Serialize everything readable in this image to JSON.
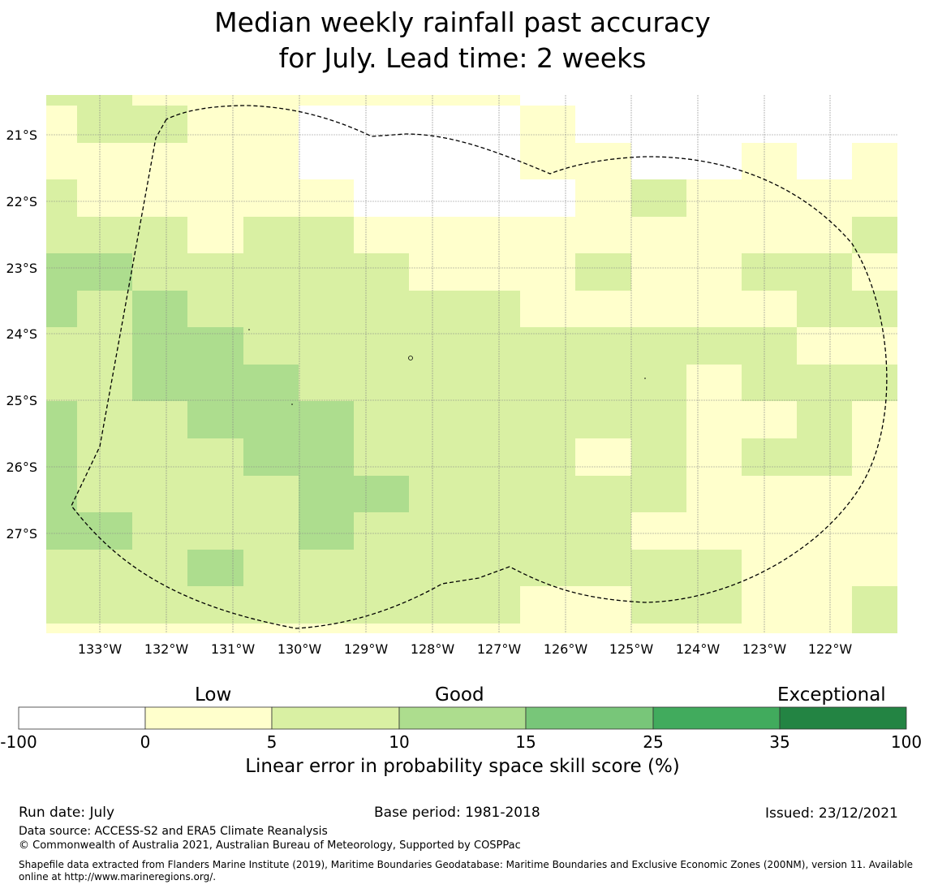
{
  "title": {
    "line1": "Median weekly rainfall past accuracy",
    "line2": "for July. Lead time: 2 weeks"
  },
  "map": {
    "lat_labels": [
      "21°S",
      "22°S",
      "23°S",
      "24°S",
      "25°S",
      "26°S",
      "27°S"
    ],
    "lon_labels": [
      "133°W",
      "132°W",
      "131°W",
      "130°W",
      "129°W",
      "128°W",
      "127°W",
      "126°W",
      "125°W",
      "124°W",
      "123°W",
      "122°W"
    ],
    "cell_colors": {
      "0": "#ffffff",
      "1": "#ffffcc",
      "2": "#d9f0a3",
      "3": "#addd8e",
      "4": "#78c679",
      "5": "#41ab5d",
      "6": "#238443"
    },
    "grid": [
      "222111111111111111111110000000000000000000000000",
      "2222222211111111111111000000000000000000000000000",
      "1112222221111111111111111000000000000000000000000",
      "111111111111111111111111111111111111100000000000",
      "111111111111111110000000000000000001111111111111",
      "111111111111111000000000000000000000000000000000"
    ],
    "rows": [
      "1 2 2 1 1 0 0 0 0 1 0 0 0 0 0 0",
      "1 1 1 1 1 0 0 0 0 1 1 0 0 1 0 1",
      "2 1 1 1 1 1 0 0 0 0 1 2 1 1 1 1",
      "2 2 2 1 2 2 1 1 1 1 1 1 1 1 1 2",
      "3 3 2 2 2 2 2 1 1 1 2 1 1 2 2 1",
      "3 2 3 2 2 2 2 2 2 1 1 1 1 1 2 2",
      "2 2 3 3 2 2 2 2 2 2 2 2 2 2 1 1",
      "2 2 3 3 3 2 2 2 2 2 2 2 1 2 2 2",
      "3 2 2 3 3 3 2 2 2 2 2 2 1 1 2 1",
      "3 2 2 2 3 3 2 2 2 2 1 2 1 2 2 1",
      "3 2 2 2 2 3 3 2 2 2 2 2 1 1 1 1",
      "3 3 2 2 2 3 2 2 2 2 2 1 1 1 1 1",
      "2 2 2 3 2 2 2 2 2 2 2 2 2 1 1 1",
      "2 2 2 2 2 2 2 2 2 1 1 2 2 1 1 2"
    ]
  },
  "colorbar": {
    "category_labels": [
      "Low",
      "Good",
      "Exceptional"
    ],
    "ticks": [
      "-100",
      "0",
      "5",
      "10",
      "15",
      "25",
      "35",
      "100"
    ],
    "colors": [
      "#ffffff",
      "#ffffcc",
      "#d9f0a3",
      "#addd8e",
      "#78c679",
      "#41ab5d",
      "#238443"
    ],
    "label": "Linear error in probability space skill score (%)"
  },
  "footer": {
    "run_date": "Run date: July",
    "base_period": "Base period: 1981-2018",
    "issued": "Issued: 23/12/2021",
    "data_source": "Data source: ACCESS-S2 and ERA5 Climate Reanalysis",
    "copyright": "© Commonwealth of Australia 2021, Australian Bureau of Meteorology, Supported by COSPPac",
    "shapefile": "Shapefile data extracted from Flanders Marine Institute (2019), Maritime Boundaries Geodatabase: Maritime Boundaries and Exclusive Economic Zones (200NM), version 11. Available online at http://www.marineregions.org/."
  }
}
